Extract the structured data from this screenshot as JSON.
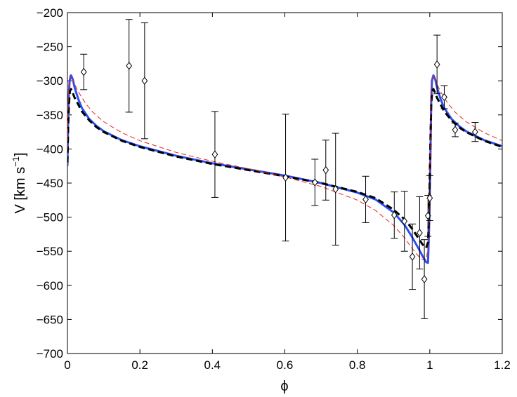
{
  "chart_data": {
    "type": "scatter",
    "title": "",
    "xlabel": "ϕ",
    "ylabel_main": "V [km s",
    "ylabel_sup": "−1",
    "ylabel_close": "]",
    "xlim": [
      0,
      1.2
    ],
    "ylim": [
      -700,
      -200
    ],
    "x_ticks": [
      0,
      0.2,
      0.4,
      0.6,
      0.8,
      1.0,
      1.2
    ],
    "x_tick_labels": [
      "0",
      "0.2",
      "0.4",
      "0.6",
      "0.8",
      "1",
      "1.2"
    ],
    "y_ticks": [
      -700,
      -650,
      -600,
      -550,
      -500,
      -450,
      -400,
      -350,
      -300,
      -250,
      -200
    ],
    "y_tick_labels": [
      "−700",
      "−650",
      "−600",
      "−550",
      "−500",
      "−450",
      "−400",
      "−350",
      "−300",
      "−250",
      "−200"
    ],
    "grid": false,
    "legend": "none",
    "observations": {
      "marker": "diamond",
      "color": "#000000",
      "points": [
        {
          "x": 0.045,
          "y": -287,
          "err": 26
        },
        {
          "x": 0.17,
          "y": -278,
          "err": 68
        },
        {
          "x": 0.213,
          "y": -300,
          "err": 85
        },
        {
          "x": 0.407,
          "y": -408,
          "err": 63
        },
        {
          "x": 0.602,
          "y": -442,
          "err": 93
        },
        {
          "x": 0.683,
          "y": -449,
          "err": 34
        },
        {
          "x": 0.713,
          "y": -431,
          "err": 44
        },
        {
          "x": 0.74,
          "y": -459,
          "err": 82
        },
        {
          "x": 0.823,
          "y": -474,
          "err": 34
        },
        {
          "x": 0.902,
          "y": -497,
          "err": 34
        },
        {
          "x": 0.93,
          "y": -506,
          "err": 44
        },
        {
          "x": 0.952,
          "y": -558,
          "err": 48
        },
        {
          "x": 0.972,
          "y": -523,
          "err": 53
        },
        {
          "x": 0.985,
          "y": -591,
          "err": 58
        },
        {
          "x": 0.995,
          "y": -498,
          "err": 30
        },
        {
          "x": 1.0,
          "y": -472,
          "err": 33
        },
        {
          "x": 1.02,
          "y": -276,
          "err": 43
        },
        {
          "x": 1.04,
          "y": -324,
          "err": 17
        },
        {
          "x": 1.07,
          "y": -372,
          "err": 10
        },
        {
          "x": 1.125,
          "y": -375,
          "err": 14
        }
      ]
    },
    "series": [
      {
        "style": "solid",
        "color": "#2b50f2",
        "x": [
          0,
          0.002,
          0.004,
          0.006,
          0.01,
          0.015,
          0.02,
          0.03,
          0.04,
          0.06,
          0.08,
          0.1,
          0.15,
          0.2,
          0.3,
          0.4,
          0.5,
          0.6,
          0.7,
          0.8,
          0.85,
          0.9,
          0.93,
          0.95,
          0.97,
          0.98,
          0.99,
          0.995,
          0.998,
          1.0,
          1.002,
          1.004,
          1.006,
          1.01,
          1.015,
          1.02,
          1.03,
          1.04,
          1.06,
          1.08,
          1.1,
          1.15,
          1.2
        ],
        "y": [
          -425,
          -360,
          -320,
          -300,
          -292,
          -298,
          -310,
          -327,
          -340,
          -356,
          -366,
          -374,
          -387,
          -396,
          -410,
          -421,
          -430,
          -439,
          -450,
          -464,
          -474,
          -493,
          -511,
          -528,
          -547,
          -557,
          -566,
          -567,
          -520,
          -465,
          -400,
          -330,
          -300,
          -292,
          -298,
          -310,
          -327,
          -340,
          -356,
          -366,
          -374,
          -387,
          -396
        ]
      },
      {
        "style": "dashed",
        "color": "#000000",
        "x": [
          0,
          0.002,
          0.004,
          0.007,
          0.01,
          0.015,
          0.02,
          0.03,
          0.04,
          0.06,
          0.08,
          0.1,
          0.15,
          0.2,
          0.3,
          0.4,
          0.5,
          0.6,
          0.7,
          0.8,
          0.85,
          0.9,
          0.93,
          0.95,
          0.97,
          0.98,
          0.99,
          0.995,
          0.998,
          1.0,
          1.002,
          1.004,
          1.007,
          1.01,
          1.015,
          1.02,
          1.03,
          1.04,
          1.06,
          1.08,
          1.1,
          1.15,
          1.2
        ],
        "y": [
          -420,
          -370,
          -335,
          -315,
          -312,
          -318,
          -325,
          -335,
          -345,
          -358,
          -368,
          -375,
          -388,
          -397,
          -411,
          -422,
          -431,
          -440,
          -450,
          -463,
          -472,
          -489,
          -503,
          -516,
          -532,
          -540,
          -545,
          -537,
          -495,
          -440,
          -380,
          -335,
          -315,
          -312,
          -318,
          -325,
          -335,
          -345,
          -358,
          -368,
          -375,
          -388,
          -397
        ]
      },
      {
        "style": "dashed",
        "color": "#e8231e",
        "x": [
          0,
          0.002,
          0.004,
          0.007,
          0.01,
          0.02,
          0.03,
          0.05,
          0.07,
          0.1,
          0.15,
          0.2,
          0.3,
          0.4,
          0.5,
          0.6,
          0.7,
          0.8,
          0.85,
          0.9,
          0.93,
          0.95,
          0.97,
          0.98,
          0.99,
          0.995,
          0.998,
          1.0,
          1.002,
          1.004,
          1.007,
          1.01,
          1.02,
          1.03,
          1.05,
          1.07,
          1.1,
          1.15,
          1.2
        ],
        "y": [
          -400,
          -330,
          -300,
          -292,
          -294,
          -305,
          -316,
          -333,
          -346,
          -360,
          -376,
          -388,
          -405,
          -418,
          -429,
          -441,
          -455,
          -475,
          -490,
          -512,
          -530,
          -545,
          -558,
          -562,
          -563,
          -545,
          -500,
          -440,
          -370,
          -320,
          -294,
          -292,
          -305,
          -316,
          -333,
          -346,
          -360,
          -376,
          -388
        ]
      }
    ]
  }
}
